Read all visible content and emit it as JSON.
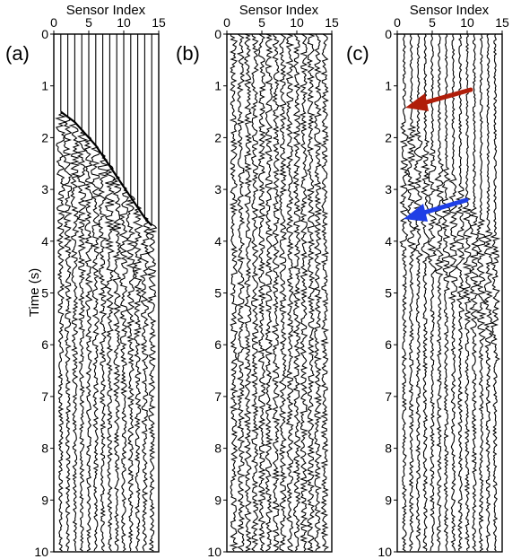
{
  "chart_data": [
    {
      "type": "line",
      "panel_label": "(a)",
      "xlabel": "Sensor Index",
      "ylabel": "Time (s)",
      "xlim": [
        0,
        15
      ],
      "ylim": [
        10,
        0
      ],
      "x_ticks": [
        0,
        5,
        10,
        15
      ],
      "y_ticks": [
        0,
        1,
        2,
        3,
        4,
        5,
        6,
        7,
        8,
        9,
        10
      ],
      "sensors": [
        1,
        2,
        3,
        4,
        5,
        6,
        7,
        8,
        9,
        10,
        11,
        12,
        13,
        14
      ],
      "wavefront_arrival_s": [
        1.5,
        1.6,
        1.7,
        1.85,
        2.0,
        2.15,
        2.35,
        2.55,
        2.75,
        2.95,
        3.15,
        3.35,
        3.55,
        3.7
      ],
      "background_noise_before_arrival": false
    },
    {
      "type": "line",
      "panel_label": "(b)",
      "xlabel": "Sensor Index",
      "ylabel": "",
      "xlim": [
        0,
        15
      ],
      "ylim": [
        10,
        0
      ],
      "x_ticks": [
        0,
        5,
        10,
        15
      ],
      "y_ticks": [
        0,
        1,
        2,
        3,
        4,
        5,
        6,
        7,
        8,
        9,
        10
      ],
      "sensors": [
        1,
        2,
        3,
        4,
        5,
        6,
        7,
        8,
        9,
        10,
        11,
        12,
        13,
        14
      ],
      "background_noise_before_arrival": true
    },
    {
      "type": "line",
      "panel_label": "(c)",
      "xlabel": "Sensor Index",
      "ylabel": "",
      "xlim": [
        0,
        15
      ],
      "ylim": [
        10,
        0
      ],
      "x_ticks": [
        0,
        5,
        10,
        15
      ],
      "y_ticks": [
        0,
        1,
        2,
        3,
        4,
        5,
        6,
        7,
        8,
        9,
        10
      ],
      "sensors": [
        1,
        2,
        3,
        4,
        5,
        6,
        7,
        8,
        9,
        10,
        11,
        12,
        13,
        14
      ],
      "annotations": [
        {
          "type": "arrow",
          "color": "#b01e0a",
          "points_to_time_s": 1.45
        },
        {
          "type": "arrow",
          "color": "#1f3fe6",
          "points_to_time_s": 3.7
        }
      ]
    }
  ]
}
